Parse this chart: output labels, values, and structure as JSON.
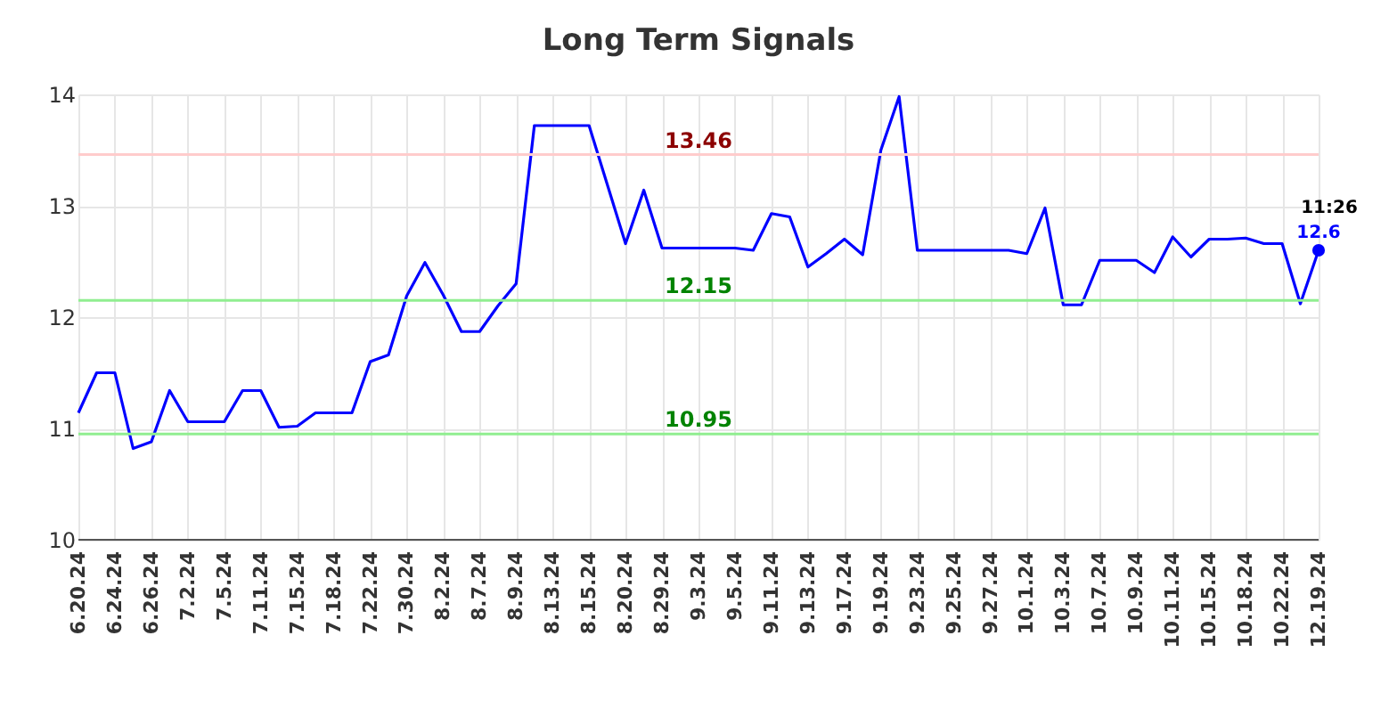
{
  "chart_data": {
    "type": "line",
    "title": "Long Term Signals",
    "categories": [
      "6.20.24",
      null,
      "6.24.24",
      null,
      "6.26.24",
      null,
      "7.2.24",
      null,
      "7.5.24",
      null,
      "7.11.24",
      null,
      "7.15.24",
      null,
      "7.18.24",
      null,
      "7.22.24",
      null,
      "7.30.24",
      null,
      "8.2.24",
      null,
      "8.7.24",
      null,
      "8.9.24",
      null,
      "8.13.24",
      null,
      "8.15.24",
      null,
      "8.20.24",
      null,
      "8.29.24",
      null,
      "9.3.24",
      null,
      "9.5.24",
      null,
      "9.11.24",
      null,
      "9.13.24",
      null,
      "9.17.24",
      null,
      "9.19.24",
      null,
      "9.23.24",
      null,
      "9.25.24",
      null,
      "9.27.24",
      null,
      "10.1.24",
      null,
      "10.3.24",
      null,
      "10.7.24",
      null,
      "10.9.24",
      null,
      "10.11.24",
      null,
      "10.15.24",
      null,
      "10.18.24",
      null,
      "10.22.24",
      null,
      "12.19.24"
    ],
    "series": [
      {
        "color": "#0000ff",
        "values": [
          11.14,
          11.5,
          11.5,
          10.82,
          10.88,
          11.34,
          11.06,
          11.06,
          11.06,
          11.34,
          11.34,
          11.01,
          11.02,
          11.14,
          11.14,
          11.14,
          11.6,
          11.66,
          12.19,
          12.49,
          12.2,
          11.87,
          11.87,
          12.1,
          12.3,
          13.72,
          13.72,
          13.72,
          13.72,
          13.19,
          12.66,
          13.14,
          12.62,
          12.62,
          12.62,
          12.62,
          12.62,
          12.6,
          12.93,
          12.9,
          12.45,
          12.57,
          12.7,
          12.56,
          13.5,
          13.98,
          12.6,
          12.6,
          12.6,
          12.6,
          12.6,
          12.6,
          12.57,
          12.98,
          12.11,
          12.11,
          12.51,
          12.51,
          12.51,
          12.4,
          12.72,
          12.54,
          12.7,
          12.7,
          12.71,
          12.66,
          12.66,
          12.12,
          12.6
        ],
        "value_labels": [
          null,
          null,
          null,
          null,
          null,
          null,
          null,
          null,
          null,
          null,
          null,
          null,
          null,
          null,
          null,
          null,
          null,
          null,
          null,
          null,
          null,
          null,
          null,
          null,
          null,
          null,
          null,
          null,
          null,
          null,
          null,
          null,
          null,
          null,
          null,
          null,
          null,
          null,
          null,
          null,
          null,
          null,
          null,
          null,
          null,
          null,
          null,
          null,
          null,
          null,
          null,
          null,
          null,
          null,
          null,
          null,
          null,
          null,
          null,
          null,
          null,
          null,
          null,
          null,
          null,
          null,
          null,
          null,
          "12.6"
        ]
      }
    ],
    "ylim": [
      10,
      14
    ],
    "yticks": [
      10,
      11,
      12,
      13,
      14
    ],
    "grid": true,
    "ref_lines": [
      {
        "axis": "y",
        "value": 13.46,
        "label": "13.46",
        "color": "#ffcccc"
      },
      {
        "axis": "y",
        "value": 12.15,
        "label": "12.15",
        "color": "#90ee90"
      },
      {
        "axis": "y",
        "value": 10.95,
        "label": "10.95",
        "color": "#90ee90"
      }
    ],
    "annotations": [
      {
        "text": "11:26",
        "x": "12.19.24",
        "y": 12.6
      }
    ]
  }
}
